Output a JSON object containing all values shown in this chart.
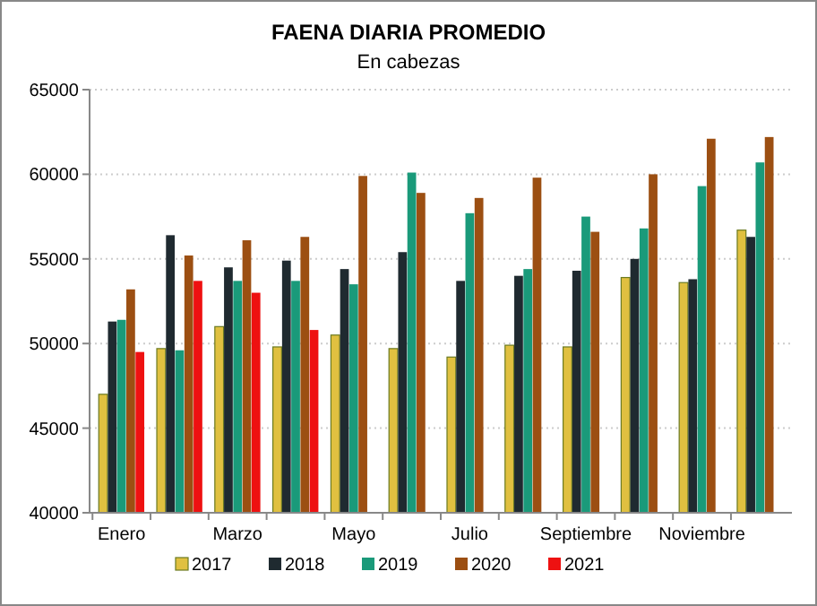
{
  "chart_data": {
    "type": "bar",
    "title": "FAENA DIARIA PROMEDIO",
    "subtitle": "En cabezas",
    "categories": [
      "Enero",
      null,
      "Marzo",
      null,
      "Mayo",
      null,
      "Julio",
      null,
      "Septiembre",
      null,
      "Noviembre",
      null
    ],
    "series": [
      {
        "name": "2017",
        "color": "#e0c040",
        "values": [
          47000,
          49700,
          51000,
          49800,
          50500,
          49700,
          49200,
          49900,
          49800,
          53900,
          53600,
          56700
        ]
      },
      {
        "name": "2018",
        "color": "#1f2a30",
        "values": [
          51300,
          56400,
          54500,
          54900,
          54400,
          55400,
          53700,
          54000,
          54300,
          55000,
          53800,
          56300
        ]
      },
      {
        "name": "2019",
        "color": "#1a9a7a",
        "values": [
          51400,
          49600,
          53700,
          53700,
          53500,
          60100,
          57700,
          54400,
          57500,
          56800,
          59300,
          60700
        ]
      },
      {
        "name": "2020",
        "color": "#9c4f12",
        "values": [
          53200,
          55200,
          56100,
          56300,
          59900,
          58900,
          58600,
          59800,
          56600,
          60000,
          62100,
          62200
        ]
      },
      {
        "name": "2021",
        "color": "#ee1111",
        "values": [
          49500,
          53700,
          53000,
          50800,
          null,
          null,
          null,
          null,
          null,
          null,
          null,
          null
        ]
      }
    ],
    "ylim": [
      40000,
      65000
    ],
    "yticks": [
      40000,
      45000,
      50000,
      55000,
      60000,
      65000
    ],
    "grid": "y",
    "legend": "bottom"
  }
}
